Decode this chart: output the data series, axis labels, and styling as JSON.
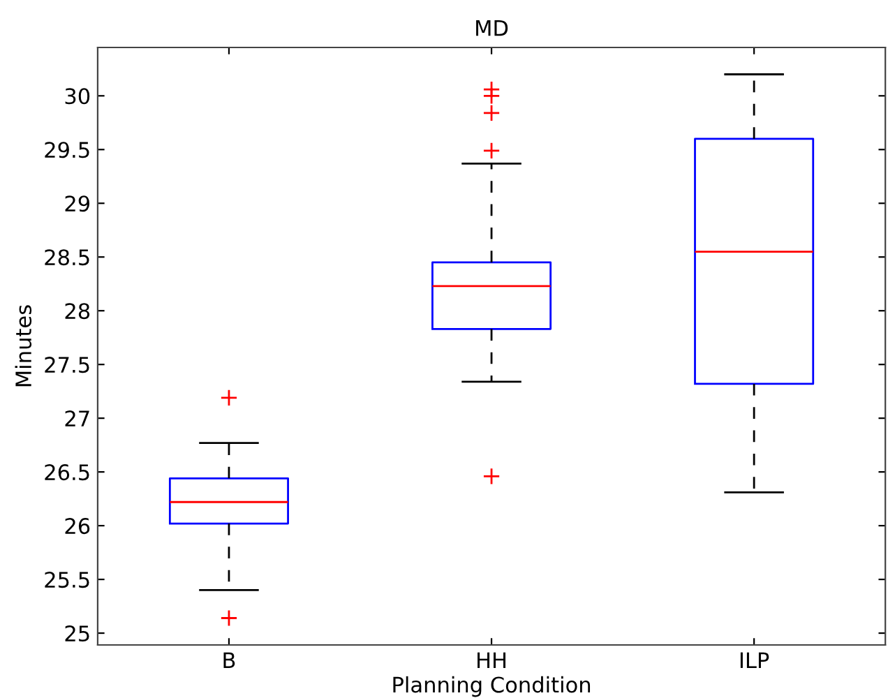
{
  "chart_data": {
    "type": "box",
    "title": "MD",
    "xlabel": "Planning Condition",
    "ylabel": "Minutes",
    "categories": [
      "B",
      "HH",
      "ILP"
    ],
    "series": [
      {
        "color": "#0000ff",
        "boxes": [
          {
            "low": 25.4,
            "q1": 26.02,
            "median": 26.22,
            "q3": 26.44,
            "high": 26.77,
            "outliers": [
              27.19,
              25.14
            ]
          },
          {
            "low": 27.34,
            "q1": 27.83,
            "median": 28.23,
            "q3": 28.45,
            "high": 29.37,
            "outliers": [
              30.06,
              30.0,
              29.84,
              29.49,
              26.46
            ]
          },
          {
            "low": 26.31,
            "q1": 27.32,
            "median": 28.55,
            "q3": 29.6,
            "high": 30.2
          }
        ]
      }
    ],
    "ylim": [
      24.89,
      30.45
    ],
    "yticks": [
      25,
      25.5,
      26,
      26.5,
      27,
      27.5,
      28,
      28.5,
      29,
      29.5,
      30
    ],
    "grid": false,
    "legend": false,
    "marker": "cross",
    "line_style": "dashed"
  }
}
